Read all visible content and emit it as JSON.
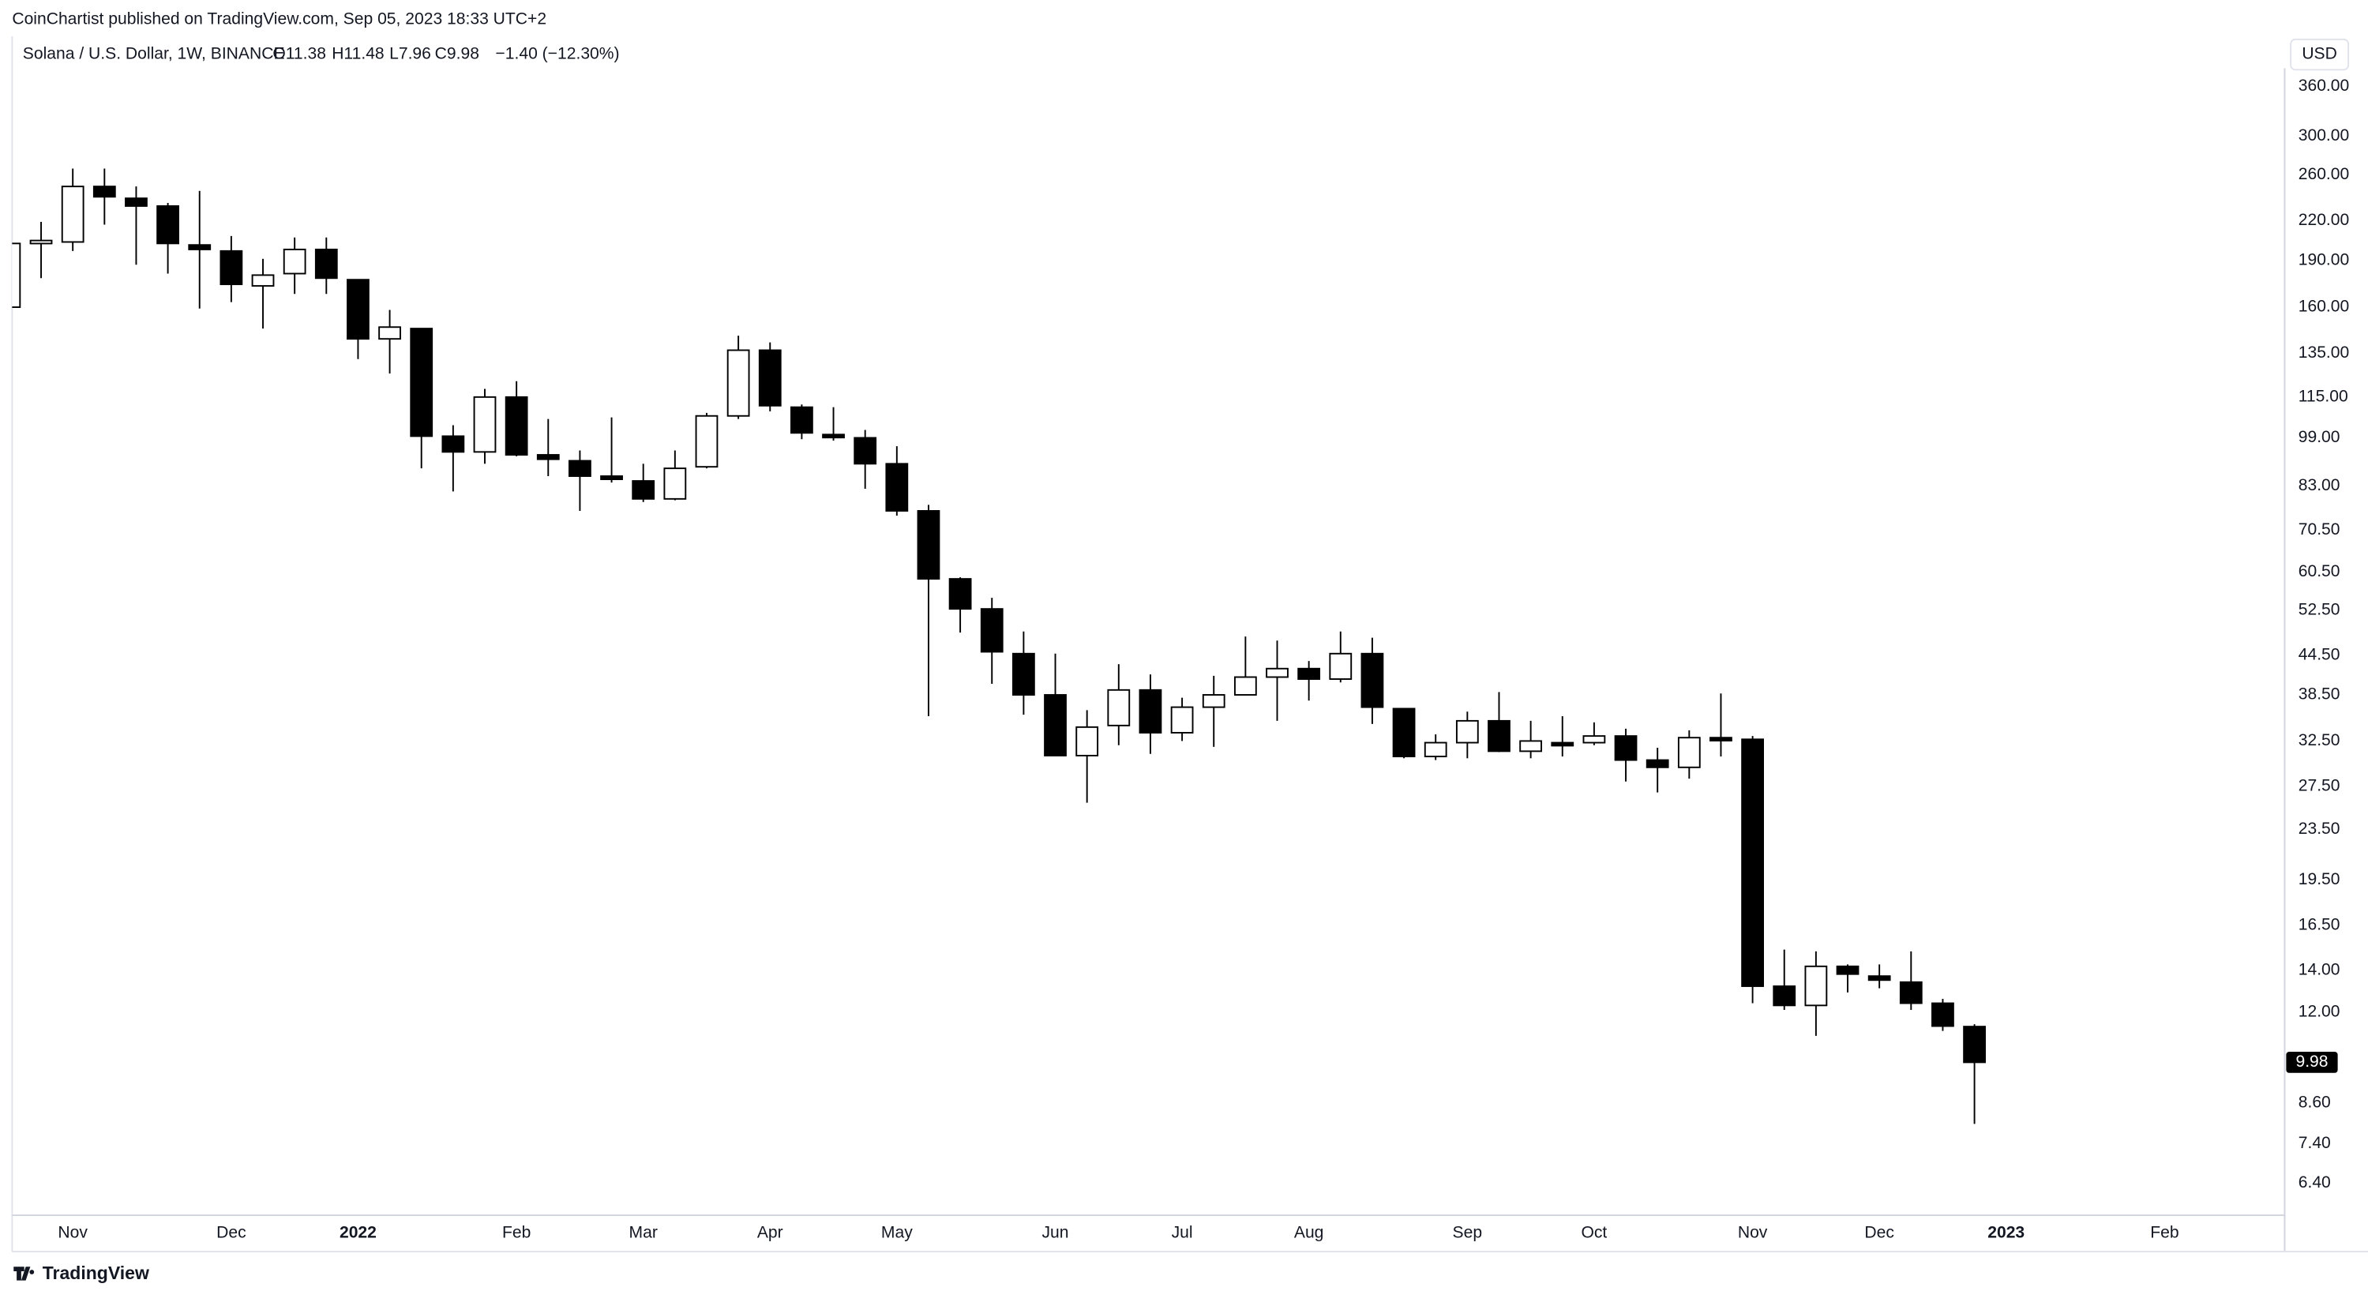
{
  "header": {
    "attribution": "CoinChartist published on TradingView.com, Sep 05, 2023 18:33 UTC+2",
    "logo": "TradingView"
  },
  "chart_data": {
    "type": "candlestick",
    "title": "Solana / U.S. Dollar, 1W, BINANCE",
    "ohlc_labels": [
      "O11.38",
      "H11.48",
      "L7.96",
      "C9.98"
    ],
    "change": "−1.40 (−12.30%)",
    "currency": "USD",
    "log_scale": true,
    "grid": false,
    "up_color": "#ffffff",
    "down_color": "#000000",
    "wick_color": "#000000",
    "categories": [
      null,
      null,
      "Nov",
      null,
      null,
      null,
      null,
      "Dec",
      null,
      null,
      null,
      "2022",
      null,
      null,
      null,
      null,
      "Feb",
      null,
      null,
      null,
      "Mar",
      null,
      null,
      null,
      "Apr",
      null,
      null,
      null,
      "May",
      null,
      null,
      null,
      null,
      "Jun",
      null,
      null,
      null,
      "Jul",
      null,
      null,
      null,
      "Aug",
      null,
      null,
      null,
      null,
      "Sep",
      null,
      null,
      null,
      "Oct",
      null,
      null,
      null,
      null,
      "Nov",
      null,
      null,
      null,
      "Dec",
      null,
      null,
      null,
      "2023",
      null,
      null,
      null,
      null,
      "Feb"
    ],
    "open": [
      160,
      202.2,
      203.3,
      249.3,
      238.7,
      232,
      201.1,
      196.7,
      173,
      181,
      197.8,
      177,
      142.4,
      147.9,
      99.6,
      94,
      115,
      93,
      91,
      86,
      84.5,
      79.1,
      89,
      107.3,
      136.6,
      110.8,
      100.2,
      99,
      90,
      75.7,
      58.96,
      52.8,
      44.8,
      38.5,
      30.8,
      34.4,
      39.2,
      33.5,
      36.8,
      38.5,
      41.1,
      42.4,
      40.8,
      44.8,
      36.6,
      30.7,
      32.3,
      35.0,
      31.3,
      32.3,
      32.3,
      33.1,
      30.3,
      29.5,
      32.9,
      32.7,
      13.2,
      12.3,
      14.2,
      13.7,
      13.4,
      12.4,
      11.38,
      null,
      null,
      null,
      null,
      null,
      null
    ],
    "high": [
      202.2,
      218.9,
      266.2,
      266.2,
      249.3,
      234.7,
      245.3,
      207.8,
      191.1,
      206.7,
      206.7,
      177,
      158.4,
      147.9,
      103.7,
      118.5,
      121.9,
      106.1,
      94.5,
      106.7,
      90,
      94.5,
      108.5,
      144.1,
      140.6,
      111.9,
      110.8,
      101.9,
      96,
      77.4,
      59.3,
      55,
      48.6,
      44.8,
      36.4,
      43.1,
      41.5,
      38.1,
      41.3,
      47.7,
      47,
      43.6,
      48.6,
      47.5,
      36.6,
      33.3,
      36.2,
      38.9,
      35,
      35.6,
      34.8,
      34,
      31.7,
      33.8,
      38.7,
      33.1,
      15.1,
      15,
      14.3,
      14.3,
      15,
      12.6,
      11.48,
      null,
      null,
      null,
      null,
      null,
      null
    ],
    "low": [
      160,
      178,
      196.7,
      216.7,
      187,
      181,
      159.2,
      163,
      147.9,
      168,
      168,
      132.2,
      125.4,
      88.5,
      81.3,
      90,
      92.5,
      86,
      75.7,
      84,
      78.2,
      78.7,
      88.5,
      106.1,
      109.1,
      98.5,
      98,
      82.1,
      74.4,
      35.6,
      48.4,
      40.1,
      35.8,
      30.8,
      25.9,
      32,
      31,
      32.5,
      31.8,
      38.5,
      35,
      37.7,
      40.3,
      34.6,
      30.5,
      30.3,
      30.5,
      31.2,
      30.5,
      30.7,
      32,
      28,
      26.9,
      28.3,
      30.7,
      12.4,
      12.1,
      11,
      12.9,
      13.1,
      12.1,
      11.2,
      7.96,
      null,
      null,
      null,
      null,
      null,
      null
    ],
    "close": [
      202.2,
      204.4,
      249.3,
      240,
      232,
      202.2,
      197.8,
      174,
      180,
      197.8,
      178,
      142.4,
      148.7,
      99.6,
      94,
      115,
      93,
      91.5,
      86,
      85,
      79.1,
      88.5,
      107.3,
      136.6,
      111.4,
      100.8,
      99.6,
      90,
      75.7,
      58.96,
      52.8,
      45.1,
      38.5,
      30.8,
      34.2,
      39.2,
      33.5,
      36.8,
      38.5,
      41.1,
      42.4,
      40.8,
      44.8,
      36.8,
      30.7,
      32.3,
      35,
      31.3,
      32.5,
      32.2,
      33.1,
      30.3,
      29.5,
      32.9,
      32.7,
      13.2,
      12.3,
      14.2,
      13.8,
      13.5,
      12.4,
      11.4,
      9.98,
      null,
      null,
      null,
      null,
      null,
      null
    ],
    "ylim": [
      5.69,
      385
    ],
    "yticks": [
      {
        "value": 360,
        "label": "360.00"
      },
      {
        "value": 300,
        "label": "300.00"
      },
      {
        "value": 260,
        "label": "260.00"
      },
      {
        "value": 220,
        "label": "220.00"
      },
      {
        "value": 190,
        "label": "190.00"
      },
      {
        "value": 160,
        "label": "160.00"
      },
      {
        "value": 135,
        "label": "135.00"
      },
      {
        "value": 115,
        "label": "115.00"
      },
      {
        "value": 99,
        "label": "99.00"
      },
      {
        "value": 83,
        "label": "83.00"
      },
      {
        "value": 70.5,
        "label": "70.50"
      },
      {
        "value": 60.5,
        "label": "60.50"
      },
      {
        "value": 52.5,
        "label": "52.50"
      },
      {
        "value": 44.5,
        "label": "44.50"
      },
      {
        "value": 38.5,
        "label": "38.50"
      },
      {
        "value": 32.5,
        "label": "32.50"
      },
      {
        "value": 27.5,
        "label": "27.50"
      },
      {
        "value": 23.5,
        "label": "23.50"
      },
      {
        "value": 19.5,
        "label": "19.50"
      },
      {
        "value": 16.5,
        "label": "16.50"
      },
      {
        "value": 14,
        "label": "14.00"
      },
      {
        "value": 12,
        "label": "12.00"
      },
      {
        "value": 8.6,
        "label": "8.60"
      },
      {
        "value": 7.4,
        "label": "7.40"
      },
      {
        "value": 6.4,
        "label": "6.40"
      }
    ]
  }
}
